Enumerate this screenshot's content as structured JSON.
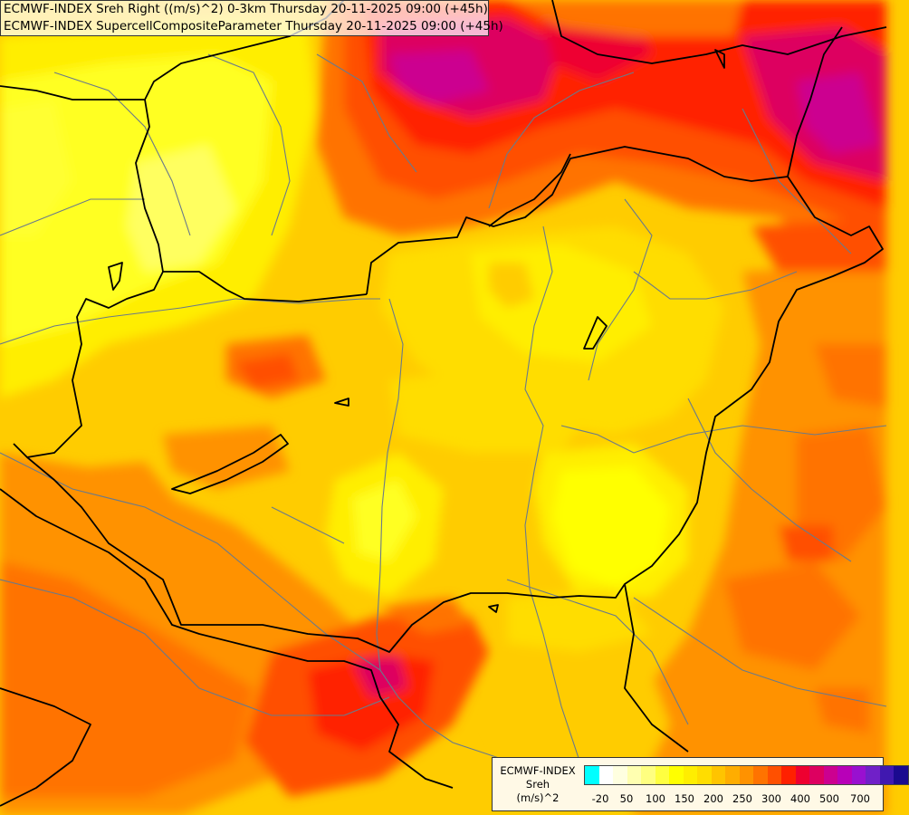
{
  "header": {
    "line1": "ECMWF-INDEX Sreh Right ((m/s)^2) 0-3km Thursday 20-11-2025 09:00 (+45h)",
    "line2": "ECMWF-INDEX SupercellCompositeParameter Thursday 20-11-2025 09:00 (+45h)"
  },
  "legend": {
    "title_line1": "ECMWF-INDEX",
    "title_line2": "Sreh",
    "title_line3": "(m/s)^2",
    "colors": [
      "#00ffff",
      "#ffffff",
      "#ffffe0",
      "#ffffb0",
      "#ffff80",
      "#ffff40",
      "#ffff00",
      "#ffee00",
      "#ffdd00",
      "#ffc400",
      "#ffad00",
      "#ff9200",
      "#ff7300",
      "#ff5000",
      "#ff2000",
      "#ee0030",
      "#dd0060",
      "#cc0090",
      "#b800b8",
      "#9910d0",
      "#7020c8",
      "#4018b0",
      "#1a0a90"
    ],
    "ticks": [
      "-20",
      "50",
      "100",
      "150",
      "200",
      "250",
      "300",
      "400",
      "500",
      "700"
    ]
  },
  "map": {
    "background": "#ffcc00",
    "border_color": "#000000",
    "river_color": "#6a7a8a"
  }
}
